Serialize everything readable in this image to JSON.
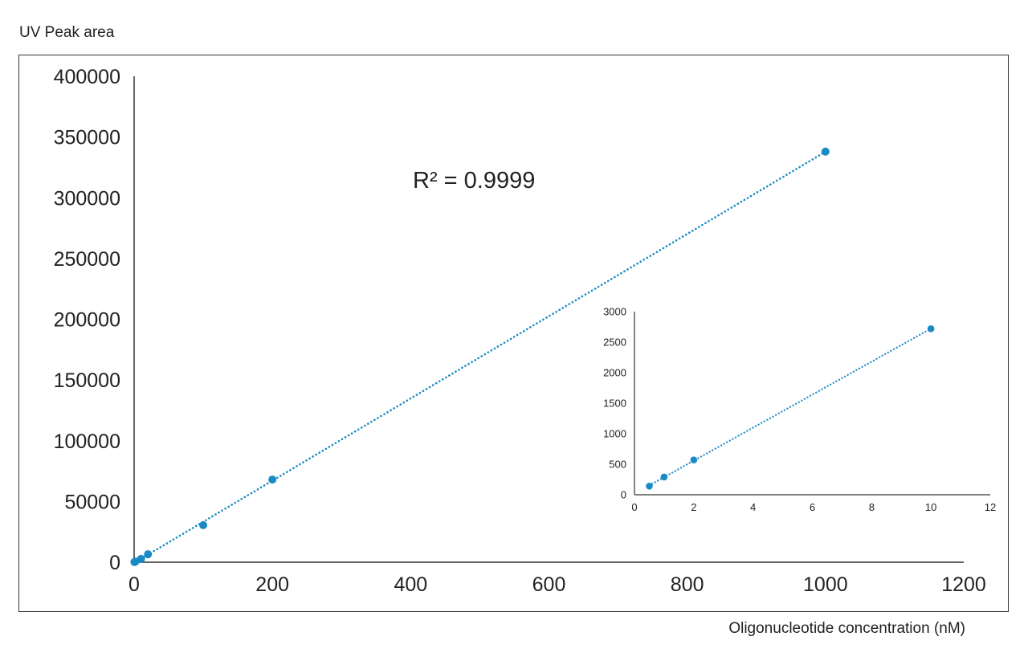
{
  "chart_data": [
    {
      "type": "scatter",
      "title": "",
      "ylabel": "UV Peak area",
      "xlabel": "Oligonucleotide concentration (nM)",
      "xlim": [
        0,
        1200
      ],
      "ylim": [
        0,
        400000
      ],
      "xticks": [
        "0",
        "200",
        "400",
        "600",
        "800",
        "1000",
        "1200"
      ],
      "yticks": [
        "0",
        "50000",
        "100000",
        "150000",
        "200000",
        "250000",
        "300000",
        "350000",
        "400000"
      ],
      "annotation": "R² = 0.9999",
      "trendline": "linear, dotted",
      "grid": false,
      "series": [
        {
          "color": "#1a8ac5",
          "x": [
            0.5,
            1,
            2,
            10,
            20,
            100,
            200,
            1000
          ],
          "y": [
            140,
            290,
            570,
            2720,
            6500,
            30500,
            68000,
            338000
          ]
        }
      ]
    },
    {
      "type": "scatter",
      "title": "",
      "xlim": [
        0,
        12
      ],
      "ylim": [
        0,
        3000
      ],
      "xticks": [
        "0",
        "2",
        "4",
        "6",
        "8",
        "10",
        "12"
      ],
      "yticks": [
        "0",
        "500",
        "1000",
        "1500",
        "2000",
        "2500",
        "3000"
      ],
      "trendline": "linear, dotted",
      "grid": false,
      "series": [
        {
          "color": "#1a8ac5",
          "x": [
            0.5,
            1,
            2,
            10
          ],
          "y": [
            140,
            290,
            570,
            2720
          ]
        }
      ]
    }
  ]
}
